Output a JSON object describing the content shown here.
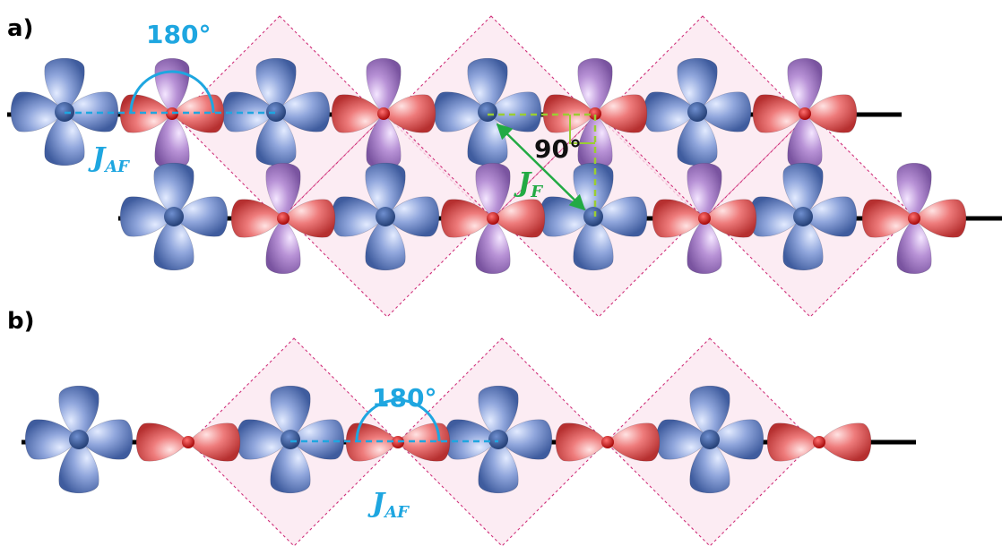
{
  "panels": {
    "a": {
      "label": "a)",
      "angle_180": "180°",
      "angle_90": "90°",
      "coupling_af": {
        "symbol": "J",
        "subscript": "AF"
      },
      "coupling_f": {
        "symbol": "J",
        "subscript": "F"
      }
    },
    "b": {
      "label": "b)",
      "angle_180": "180°",
      "coupling_af": {
        "symbol": "J",
        "subscript": "AF"
      }
    }
  },
  "colors": {
    "metal_orbital": "#8aa0d8",
    "metal_center": "#2a4f8f",
    "oxygen_p_orbital": "#e86a6a",
    "oxygen_center": "#d81010",
    "oxygen_perp_orbital": "#b48ad0",
    "chain_line": "#000000",
    "plaquette_fill": "#fbe6ef",
    "plaquette_border": "#d0307a",
    "cyan_annotation": "#1ea6e0",
    "green_annotation": "#22aa44",
    "lightgreen_dash": "#9acd32"
  }
}
